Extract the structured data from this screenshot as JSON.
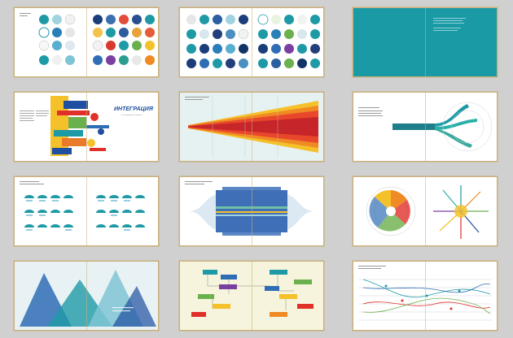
{
  "spreads": [
    {
      "id": "circle-thumbnails-a"
    },
    {
      "id": "circle-thumbnails-b"
    },
    {
      "id": "teal-page"
    },
    {
      "id": "integration-collage",
      "heading": "ИНТЕГРАЦИЯ",
      "subheading": "— все компоненты связаны —"
    },
    {
      "id": "red-funnel-chart"
    },
    {
      "id": "teal-flow-arc"
    },
    {
      "id": "small-multiples-grid"
    },
    {
      "id": "blue-band-chart"
    },
    {
      "id": "radial-charts"
    },
    {
      "id": "mountain-triangles"
    },
    {
      "id": "flowchart-boxes"
    },
    {
      "id": "network-timeline"
    }
  ],
  "colors": {
    "background": "#d0d0d0",
    "page": "#ffffff",
    "border": "#c8b07a",
    "teal": "#1e9aa6",
    "navy": "#1e4fa0",
    "red": "#e0302a",
    "orange": "#f08a24",
    "yellow": "#f5c12a",
    "blue": "#2f6db5",
    "green": "#6ab04c"
  }
}
